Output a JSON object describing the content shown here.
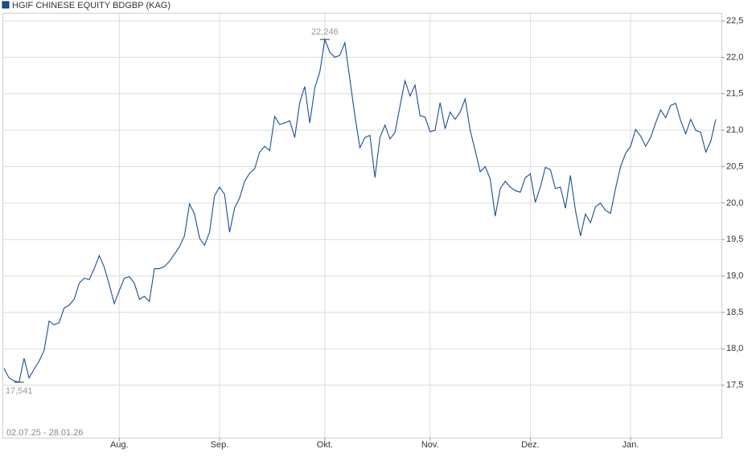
{
  "chart_data": {
    "type": "line",
    "title": "HGIF CHINESE EQUITY BDGBP (KAG)",
    "date_range": "02.07.25 - 28.01.26",
    "categories": [
      null,
      null,
      null,
      null,
      null,
      null,
      null,
      null,
      null,
      null,
      null,
      null,
      null,
      null,
      null,
      null,
      null,
      null,
      null,
      null,
      null,
      null,
      null,
      "Aug.",
      null,
      null,
      null,
      null,
      null,
      null,
      null,
      null,
      null,
      null,
      null,
      null,
      null,
      null,
      null,
      null,
      null,
      null,
      null,
      "Sep.",
      null,
      null,
      null,
      null,
      null,
      null,
      null,
      null,
      null,
      null,
      null,
      null,
      null,
      null,
      null,
      null,
      null,
      null,
      null,
      null,
      "Okt.",
      null,
      null,
      null,
      null,
      null,
      null,
      null,
      null,
      null,
      null,
      null,
      null,
      null,
      null,
      null,
      null,
      null,
      null,
      null,
      null,
      "Nov.",
      null,
      null,
      null,
      null,
      null,
      null,
      null,
      null,
      null,
      null,
      null,
      null,
      null,
      null,
      null,
      null,
      null,
      null,
      null,
      "Dez.",
      null,
      null,
      null,
      null,
      null,
      null,
      null,
      null,
      null,
      null,
      null,
      null,
      null,
      null,
      null,
      null,
      null,
      null,
      null,
      "Jan.",
      null,
      null,
      null,
      null,
      null,
      null,
      null,
      null,
      null,
      null,
      null,
      null,
      null,
      null,
      null,
      null,
      null
    ],
    "series": [
      {
        "name": "HGIF CHINESE EQUITY BDGBP (KAG)",
        "color": "#1b4f93",
        "values": [
          17.73,
          17.6,
          17.56,
          17.541,
          17.87,
          17.6,
          17.72,
          17.83,
          17.98,
          18.38,
          18.33,
          18.36,
          18.56,
          18.6,
          18.68,
          18.9,
          18.97,
          18.95,
          19.1,
          19.28,
          19.12,
          18.88,
          18.62,
          18.8,
          18.97,
          18.99,
          18.9,
          18.68,
          18.72,
          18.65,
          19.1,
          19.1,
          19.13,
          19.2,
          19.3,
          19.4,
          19.55,
          19.99,
          19.85,
          19.52,
          19.42,
          19.6,
          20.1,
          20.22,
          20.12,
          19.6,
          19.93,
          20.07,
          20.3,
          20.41,
          20.47,
          20.7,
          20.78,
          20.72,
          21.19,
          21.08,
          21.1,
          21.13,
          20.9,
          21.38,
          21.6,
          21.1,
          21.58,
          21.8,
          22.246,
          22.07,
          22.0,
          22.03,
          22.2,
          21.7,
          21.2,
          20.76,
          20.9,
          20.93,
          20.35,
          20.9,
          21.07,
          20.88,
          20.97,
          21.33,
          21.68,
          21.47,
          21.62,
          21.2,
          21.18,
          20.98,
          21.0,
          21.38,
          21.02,
          21.25,
          21.15,
          21.25,
          21.43,
          21.0,
          20.72,
          20.43,
          20.5,
          20.33,
          19.82,
          20.2,
          20.3,
          20.22,
          20.17,
          20.15,
          20.35,
          20.4,
          20.01,
          20.22,
          20.49,
          20.46,
          20.2,
          20.22,
          19.93,
          20.38,
          19.9,
          19.55,
          19.85,
          19.73,
          19.95,
          20.0,
          19.9,
          19.86,
          20.2,
          20.5,
          20.68,
          20.78,
          21.01,
          20.92,
          20.78,
          20.9,
          21.1,
          21.28,
          21.17,
          21.34,
          21.37,
          21.13,
          20.95,
          21.15,
          21.0,
          20.97,
          20.7,
          20.85,
          21.15
        ]
      }
    ],
    "max_label": {
      "value": 22.246,
      "label": "22,246"
    },
    "min_label": {
      "value": 17.541,
      "label": "17,541"
    },
    "ylim": [
      16.78,
      22.6
    ],
    "yticks": [
      {
        "value": 17.5,
        "label": "17,5"
      },
      {
        "value": 18,
        "label": "18,0"
      },
      {
        "value": 18.5,
        "label": "18,5"
      },
      {
        "value": 19,
        "label": "19,0"
      },
      {
        "value": 19.5,
        "label": "19,5"
      },
      {
        "value": 20,
        "label": "20,0"
      },
      {
        "value": 20.5,
        "label": "20,5"
      },
      {
        "value": 21,
        "label": "21,0"
      },
      {
        "value": 21.5,
        "label": "21,5"
      },
      {
        "value": 22,
        "label": "22,0"
      },
      {
        "value": 22.5,
        "label": "22,5"
      }
    ],
    "grid": true
  }
}
